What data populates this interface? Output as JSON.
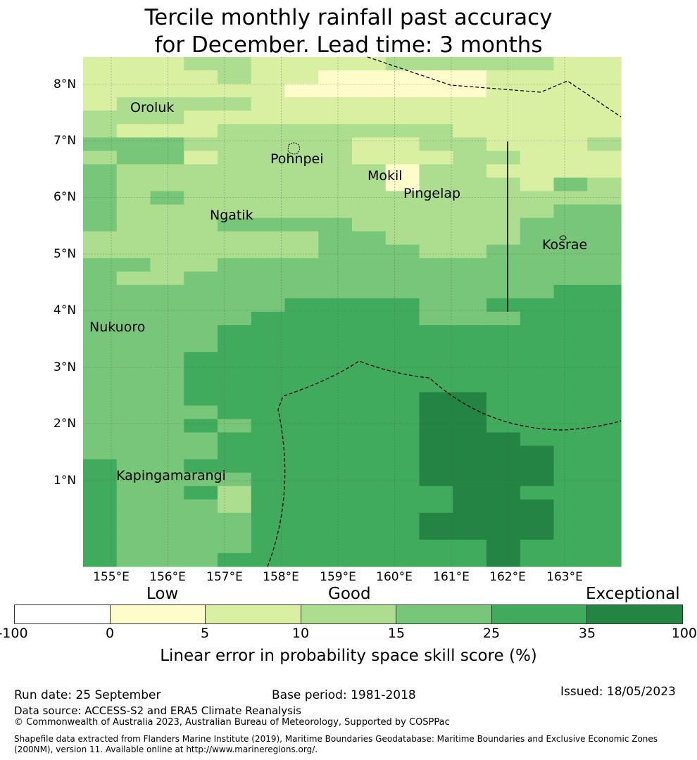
{
  "title": {
    "line1": "Tercile monthly rainfall past accuracy",
    "line2": "for December. Lead time: 3 months"
  },
  "axes": {
    "lat_labels": [
      "8°N",
      "7°N",
      "6°N",
      "5°N",
      "4°N",
      "3°N",
      "2°N",
      "1°N"
    ],
    "lon_labels": [
      "155°E",
      "156°E",
      "157°E",
      "158°E",
      "159°E",
      "160°E",
      "161°E",
      "162°E",
      "163°E"
    ]
  },
  "places": [
    {
      "name": "Oroluk"
    },
    {
      "name": "Pohnpei"
    },
    {
      "name": "Mokil"
    },
    {
      "name": "Pingelap"
    },
    {
      "name": "Ngatik"
    },
    {
      "name": "Kosrae"
    },
    {
      "name": "Nukuoro"
    },
    {
      "name": "Kapingamarangi"
    }
  ],
  "colorbar": {
    "categories": {
      "low": "Low",
      "good": "Good",
      "exceptional": "Exceptional"
    },
    "ticks": [
      "-100",
      "0",
      "5",
      "10",
      "15",
      "25",
      "35",
      "100"
    ],
    "colors": [
      "#ffffff",
      "#fffccc",
      "#d9f0a3",
      "#addd8e",
      "#78c679",
      "#41ab5d",
      "#238443"
    ],
    "title": "Linear error in probability space skill score (%)"
  },
  "grid_legend": {
    "0": "#ffffff",
    "1": "#fffccc",
    "2": "#d9f0a3",
    "3": "#addd8e",
    "4": "#78c679",
    "5": "#41ab5d",
    "6": "#238443"
  },
  "grid_rows": [
    "2223322223333322",
    "2222322111112222",
    "2222221111112222",
    "2333322222222222",
    "3332222222222222",
    "3222333333322222",
    "4443333322332223",
    "3442333322233222",
    "4333333331332222",
    "4333333331333243",
    "4343333333333333",
    "4333333333333344",
    "4333444433333444",
    "3333333443333444",
    "3333333444334444",
    "4433444444444444",
    "4334444444444444",
    "4444444444444455",
    "4444445555445555",
    "4444455555444555",
    "4444555555555555",
    "4444555555555555",
    "4445555555555555",
    "4445555555555555",
    "4445555555555555",
    "4445555555665555",
    "4444555555665555",
    "4445455555665555",
    "4444555555666555",
    "4444555555666655",
    "5445555555666655",
    "5444455555666655",
    "5445355555566555",
    "5444355555566655",
    "5444455555666655",
    "5444455555666655",
    "5444455555556555",
    "5444555555556555"
  ],
  "footer": {
    "run_date": "Run date: 25 September",
    "base_period": "Base period: 1981-2018",
    "issued": "Issued: 18/05/2023",
    "data_source": "Data source: ACCESS-S2 and ERA5 Climate Reanalysis",
    "copyright": "© Commonwealth of Australia 2023, Australian Bureau of Meteorology, Supported by COSPPac",
    "shapefile_line1": "Shapefile data extracted from Flanders Marine Institute (2019), Maritime Boundaries Geodatabase: Maritime Boundaries and Exclusive Economic Zones",
    "shapefile_line2": "(200NM), version 11. Available online at http://www.marineregions.org/."
  }
}
